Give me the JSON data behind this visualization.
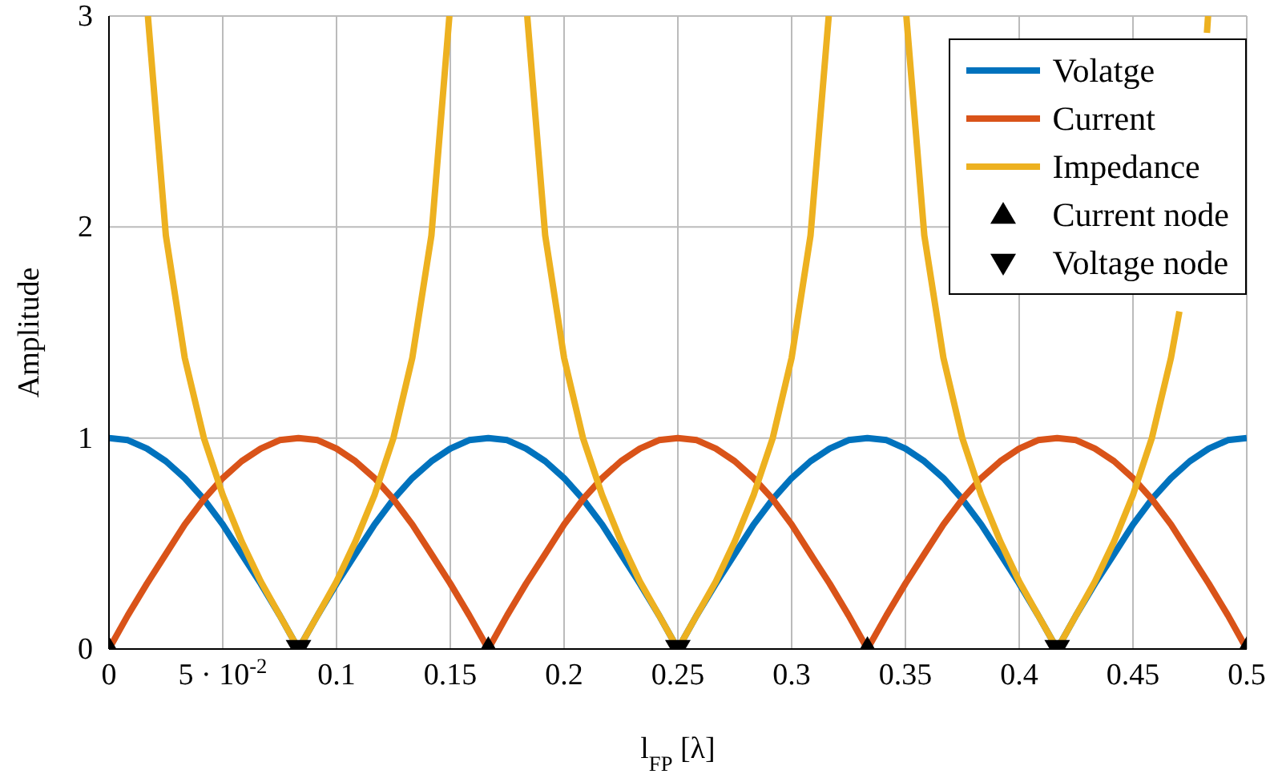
{
  "chart_data": {
    "type": "line",
    "xlabel": "l$_{FP}$ [λ]",
    "ylabel": "Amplitude",
    "x": [
      0,
      0.0083,
      0.0167,
      0.025,
      0.0333,
      0.0417,
      0.05,
      0.0583,
      0.0667,
      0.075,
      0.0833,
      0.0917,
      0.1,
      0.1083,
      0.1167,
      0.125,
      0.1333,
      0.1417,
      0.15,
      0.1583,
      0.1667,
      0.175,
      0.1833,
      0.1917,
      0.2,
      0.2083,
      0.2167,
      0.225,
      0.2333,
      0.2417,
      0.25,
      0.2583,
      0.2667,
      0.275,
      0.2833,
      0.2917,
      0.3,
      0.3083,
      0.3167,
      0.325,
      0.3333,
      0.3417,
      0.35,
      0.3583,
      0.3667,
      0.375,
      0.3833,
      0.3917,
      0.4,
      0.4083,
      0.4167,
      0.425,
      0.4333,
      0.4417,
      0.45,
      0.4583,
      0.4667,
      0.475,
      0.4833,
      0.4917,
      0.5
    ],
    "series": [
      {
        "name": "Volatge",
        "color": "#0072bd",
        "values": [
          1,
          0.99,
          0.95,
          0.89,
          0.81,
          0.71,
          0.59,
          0.45,
          0.31,
          0.16,
          0,
          0.16,
          0.31,
          0.45,
          0.59,
          0.71,
          0.81,
          0.89,
          0.95,
          0.99,
          1,
          0.99,
          0.95,
          0.89,
          0.81,
          0.71,
          0.59,
          0.45,
          0.31,
          0.16,
          0,
          0.16,
          0.31,
          0.45,
          0.59,
          0.71,
          0.81,
          0.89,
          0.95,
          0.99,
          1,
          0.99,
          0.95,
          0.89,
          0.81,
          0.71,
          0.59,
          0.45,
          0.31,
          0.16,
          0,
          0.16,
          0.31,
          0.45,
          0.59,
          0.71,
          0.81,
          0.89,
          0.95,
          0.99,
          1
        ]
      },
      {
        "name": "Current",
        "color": "#d95319",
        "values": [
          0,
          0.16,
          0.31,
          0.45,
          0.59,
          0.71,
          0.81,
          0.89,
          0.95,
          0.99,
          1,
          0.99,
          0.95,
          0.89,
          0.81,
          0.71,
          0.59,
          0.45,
          0.31,
          0.16,
          0,
          0.16,
          0.31,
          0.45,
          0.59,
          0.71,
          0.81,
          0.89,
          0.95,
          0.99,
          1,
          0.99,
          0.95,
          0.89,
          0.81,
          0.71,
          0.59,
          0.45,
          0.31,
          0.16,
          0,
          0.16,
          0.31,
          0.45,
          0.59,
          0.71,
          0.81,
          0.89,
          0.95,
          0.99,
          1,
          0.99,
          0.95,
          0.89,
          0.81,
          0.71,
          0.59,
          0.45,
          0.31,
          0.16,
          0
        ]
      },
      {
        "name": "Impedance",
        "color": "#edb120",
        "x": [
          0.0171,
          0.025,
          0.0333,
          0.0417,
          0.05,
          0.0583,
          0.0667,
          0.075,
          0.0833,
          0.0917,
          0.1,
          0.1083,
          0.1167,
          0.125,
          0.1333,
          0.1417,
          0.1496,
          0.1583,
          0.1838,
          0.1917,
          0.2,
          0.2083,
          0.2167,
          0.225,
          0.2333,
          0.2417,
          0.25,
          0.2583,
          0.2667,
          0.275,
          0.2833,
          0.2917,
          0.3,
          0.3083,
          0.3163,
          0.325,
          0.3504,
          0.3583,
          0.3667,
          0.375,
          0.3833,
          0.3917,
          0.4,
          0.4083,
          0.4167,
          0.425,
          0.4333,
          0.4417,
          0.45,
          0.4583,
          0.4667,
          0.4704,
          0.4765,
          0.4825,
          0.483
        ],
        "values": [
          3,
          1.96,
          1.38,
          1,
          0.73,
          0.51,
          0.32,
          0.16,
          0,
          0.16,
          0.32,
          0.51,
          0.73,
          1,
          1.38,
          1.96,
          3,
          null,
          3,
          1.96,
          1.38,
          1,
          0.73,
          0.51,
          0.32,
          0.16,
          0,
          0.16,
          0.32,
          0.51,
          0.73,
          1,
          1.38,
          1.96,
          3,
          null,
          3,
          1.96,
          1.38,
          1,
          0.73,
          0.51,
          0.32,
          0.16,
          0,
          0.16,
          0.32,
          0.51,
          0.73,
          1,
          1.38,
          1.6,
          null,
          2.92,
          3
        ]
      },
      {
        "name": "Current node",
        "type": "scatter",
        "color": "#000000",
        "marker": "triangle",
        "x": [
          0,
          0.1667,
          0.3333,
          0.5
        ],
        "values": [
          0,
          0,
          0,
          0
        ]
      },
      {
        "name": "Voltage node",
        "type": "scatter",
        "color": "#000000",
        "marker": "triangle-down",
        "x": [
          0.0833,
          0.25,
          0.4167
        ],
        "values": [
          0,
          0,
          0
        ]
      }
    ],
    "xlim": [
      0,
      0.5
    ],
    "xticks": [
      0,
      {
        "value": 0.05,
        "label": "5 · 10$^{-2}$"
      },
      0.1,
      0.15,
      0.2,
      0.25,
      0.3,
      0.35,
      0.4,
      0.45,
      0.5
    ],
    "ylim": [
      0,
      3
    ],
    "yticks": [
      0,
      1,
      2,
      3
    ],
    "grid": true,
    "legend": "top right",
    "line_style": "solid"
  }
}
